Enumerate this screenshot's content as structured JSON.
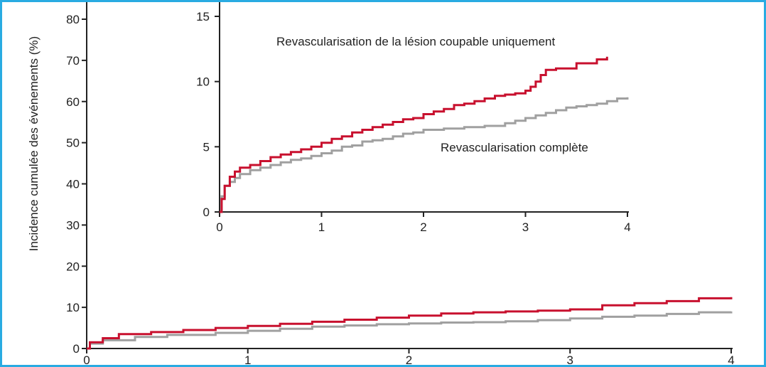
{
  "chart_data": [
    {
      "type": "line",
      "title": "",
      "ylabel": "Incidence cumulée des événements (%)",
      "xlabel": "",
      "ylim": [
        0,
        80
      ],
      "xlim": [
        0,
        4
      ],
      "y_ticks": [
        "0",
        "10",
        "20",
        "30",
        "40",
        "50",
        "60",
        "70",
        "80"
      ],
      "x_ticks": [
        "0",
        "1",
        "2",
        "3",
        "4"
      ],
      "grid": false,
      "series": [
        {
          "color": "#c8102e",
          "x": [
            0,
            0.02,
            0.1,
            0.2,
            0.4,
            0.6,
            0.8,
            1.0,
            1.2,
            1.4,
            1.6,
            1.8,
            2.0,
            2.2,
            2.4,
            2.6,
            2.8,
            3.0,
            3.2,
            3.4,
            3.6,
            3.8,
            4.0
          ],
          "y": [
            0,
            1.5,
            2.5,
            3.5,
            4.0,
            4.5,
            5.0,
            5.5,
            6.0,
            6.5,
            7.0,
            7.5,
            8.0,
            8.5,
            8.8,
            9.0,
            9.2,
            9.5,
            10.5,
            11.0,
            11.5,
            12.2,
            12.5
          ]
        },
        {
          "color": "#a0a0a0",
          "x": [
            0,
            0.02,
            0.1,
            0.3,
            0.5,
            0.8,
            1.0,
            1.2,
            1.4,
            1.6,
            1.8,
            2.0,
            2.2,
            2.4,
            2.6,
            2.8,
            3.0,
            3.2,
            3.4,
            3.6,
            3.8,
            4.0
          ],
          "y": [
            0,
            1.2,
            2.0,
            2.8,
            3.3,
            3.8,
            4.3,
            4.8,
            5.3,
            5.6,
            5.9,
            6.1,
            6.3,
            6.4,
            6.6,
            6.9,
            7.3,
            7.7,
            8.0,
            8.4,
            8.8,
            9.0
          ]
        }
      ]
    },
    {
      "type": "line",
      "title": "",
      "ylim": [
        0,
        15
      ],
      "xlim": [
        0,
        4
      ],
      "y_ticks": [
        "0",
        "5",
        "10",
        "15"
      ],
      "x_ticks": [
        "0",
        "1",
        "2",
        "3",
        "4"
      ],
      "grid": false,
      "annotations": [
        "Revascularisation de la lésion coupable uniquement",
        "Revascularisation complète"
      ],
      "series": [
        {
          "color": "#c8102e",
          "x": [
            0,
            0.02,
            0.05,
            0.1,
            0.15,
            0.2,
            0.3,
            0.4,
            0.5,
            0.6,
            0.7,
            0.8,
            0.9,
            1.0,
            1.1,
            1.2,
            1.3,
            1.4,
            1.5,
            1.6,
            1.7,
            1.8,
            1.9,
            2.0,
            2.1,
            2.2,
            2.3,
            2.4,
            2.5,
            2.6,
            2.7,
            2.8,
            2.9,
            3.0,
            3.05,
            3.1,
            3.15,
            3.2,
            3.3,
            3.4,
            3.5,
            3.6,
            3.7,
            3.8
          ],
          "y": [
            0,
            1.0,
            2.0,
            2.7,
            3.1,
            3.4,
            3.6,
            3.9,
            4.2,
            4.4,
            4.6,
            4.8,
            5.0,
            5.3,
            5.6,
            5.8,
            6.1,
            6.3,
            6.5,
            6.7,
            6.9,
            7.1,
            7.2,
            7.5,
            7.7,
            7.9,
            8.2,
            8.3,
            8.5,
            8.7,
            8.9,
            9.0,
            9.1,
            9.3,
            9.6,
            10.0,
            10.5,
            10.9,
            11.0,
            11.0,
            11.4,
            11.4,
            11.7,
            11.9
          ]
        },
        {
          "color": "#a0a0a0",
          "x": [
            0,
            0.02,
            0.05,
            0.1,
            0.15,
            0.2,
            0.3,
            0.4,
            0.5,
            0.6,
            0.7,
            0.8,
            0.9,
            1.0,
            1.1,
            1.2,
            1.3,
            1.4,
            1.5,
            1.6,
            1.7,
            1.8,
            1.9,
            2.0,
            2.2,
            2.4,
            2.6,
            2.8,
            2.9,
            3.0,
            3.1,
            3.2,
            3.3,
            3.4,
            3.5,
            3.6,
            3.7,
            3.8,
            3.9,
            4.0
          ],
          "y": [
            0,
            1.2,
            2.0,
            2.3,
            2.6,
            2.9,
            3.2,
            3.4,
            3.6,
            3.8,
            4.0,
            4.1,
            4.3,
            4.5,
            4.7,
            5.0,
            5.1,
            5.4,
            5.5,
            5.6,
            5.8,
            6.0,
            6.1,
            6.3,
            6.4,
            6.5,
            6.6,
            6.8,
            7.0,
            7.2,
            7.4,
            7.6,
            7.8,
            8.0,
            8.1,
            8.2,
            8.3,
            8.5,
            8.7,
            8.8
          ]
        }
      ]
    }
  ]
}
